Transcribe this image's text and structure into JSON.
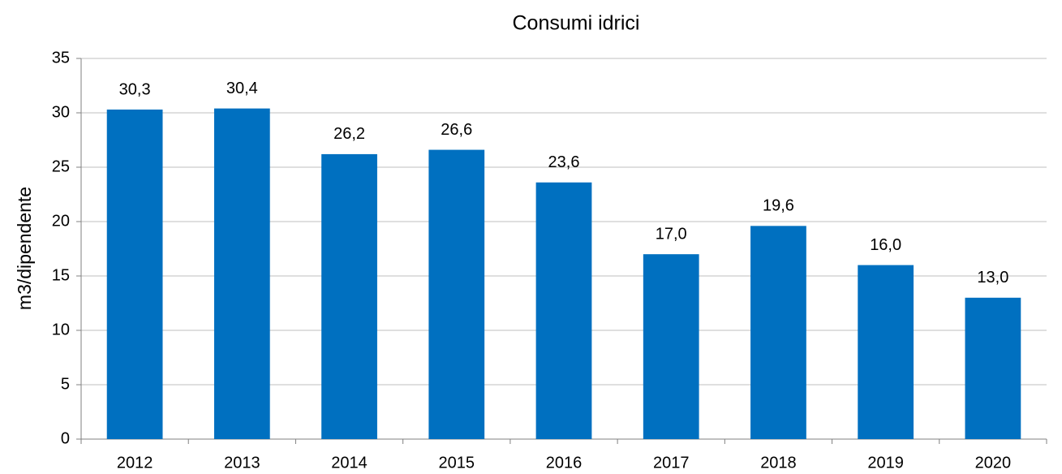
{
  "chart_data": {
    "type": "bar",
    "title": "Consumi idrici",
    "y_label": "m3/dipendente",
    "categories": [
      "2012",
      "2013",
      "2014",
      "2015",
      "2016",
      "2017",
      "2018",
      "2019",
      "2020"
    ],
    "values": [
      30.3,
      30.4,
      26.2,
      26.6,
      23.6,
      17.0,
      19.6,
      16.0,
      13.0
    ],
    "value_labels": [
      "30,3",
      "30,4",
      "26,2",
      "26,6",
      "23,6",
      "17,0",
      "19,6",
      "16,0",
      "13,0"
    ],
    "color": "#0070c0",
    "ylim": [
      0,
      35
    ],
    "yticks": [
      0,
      5,
      10,
      15,
      20,
      25,
      30,
      35
    ],
    "grid": true
  }
}
